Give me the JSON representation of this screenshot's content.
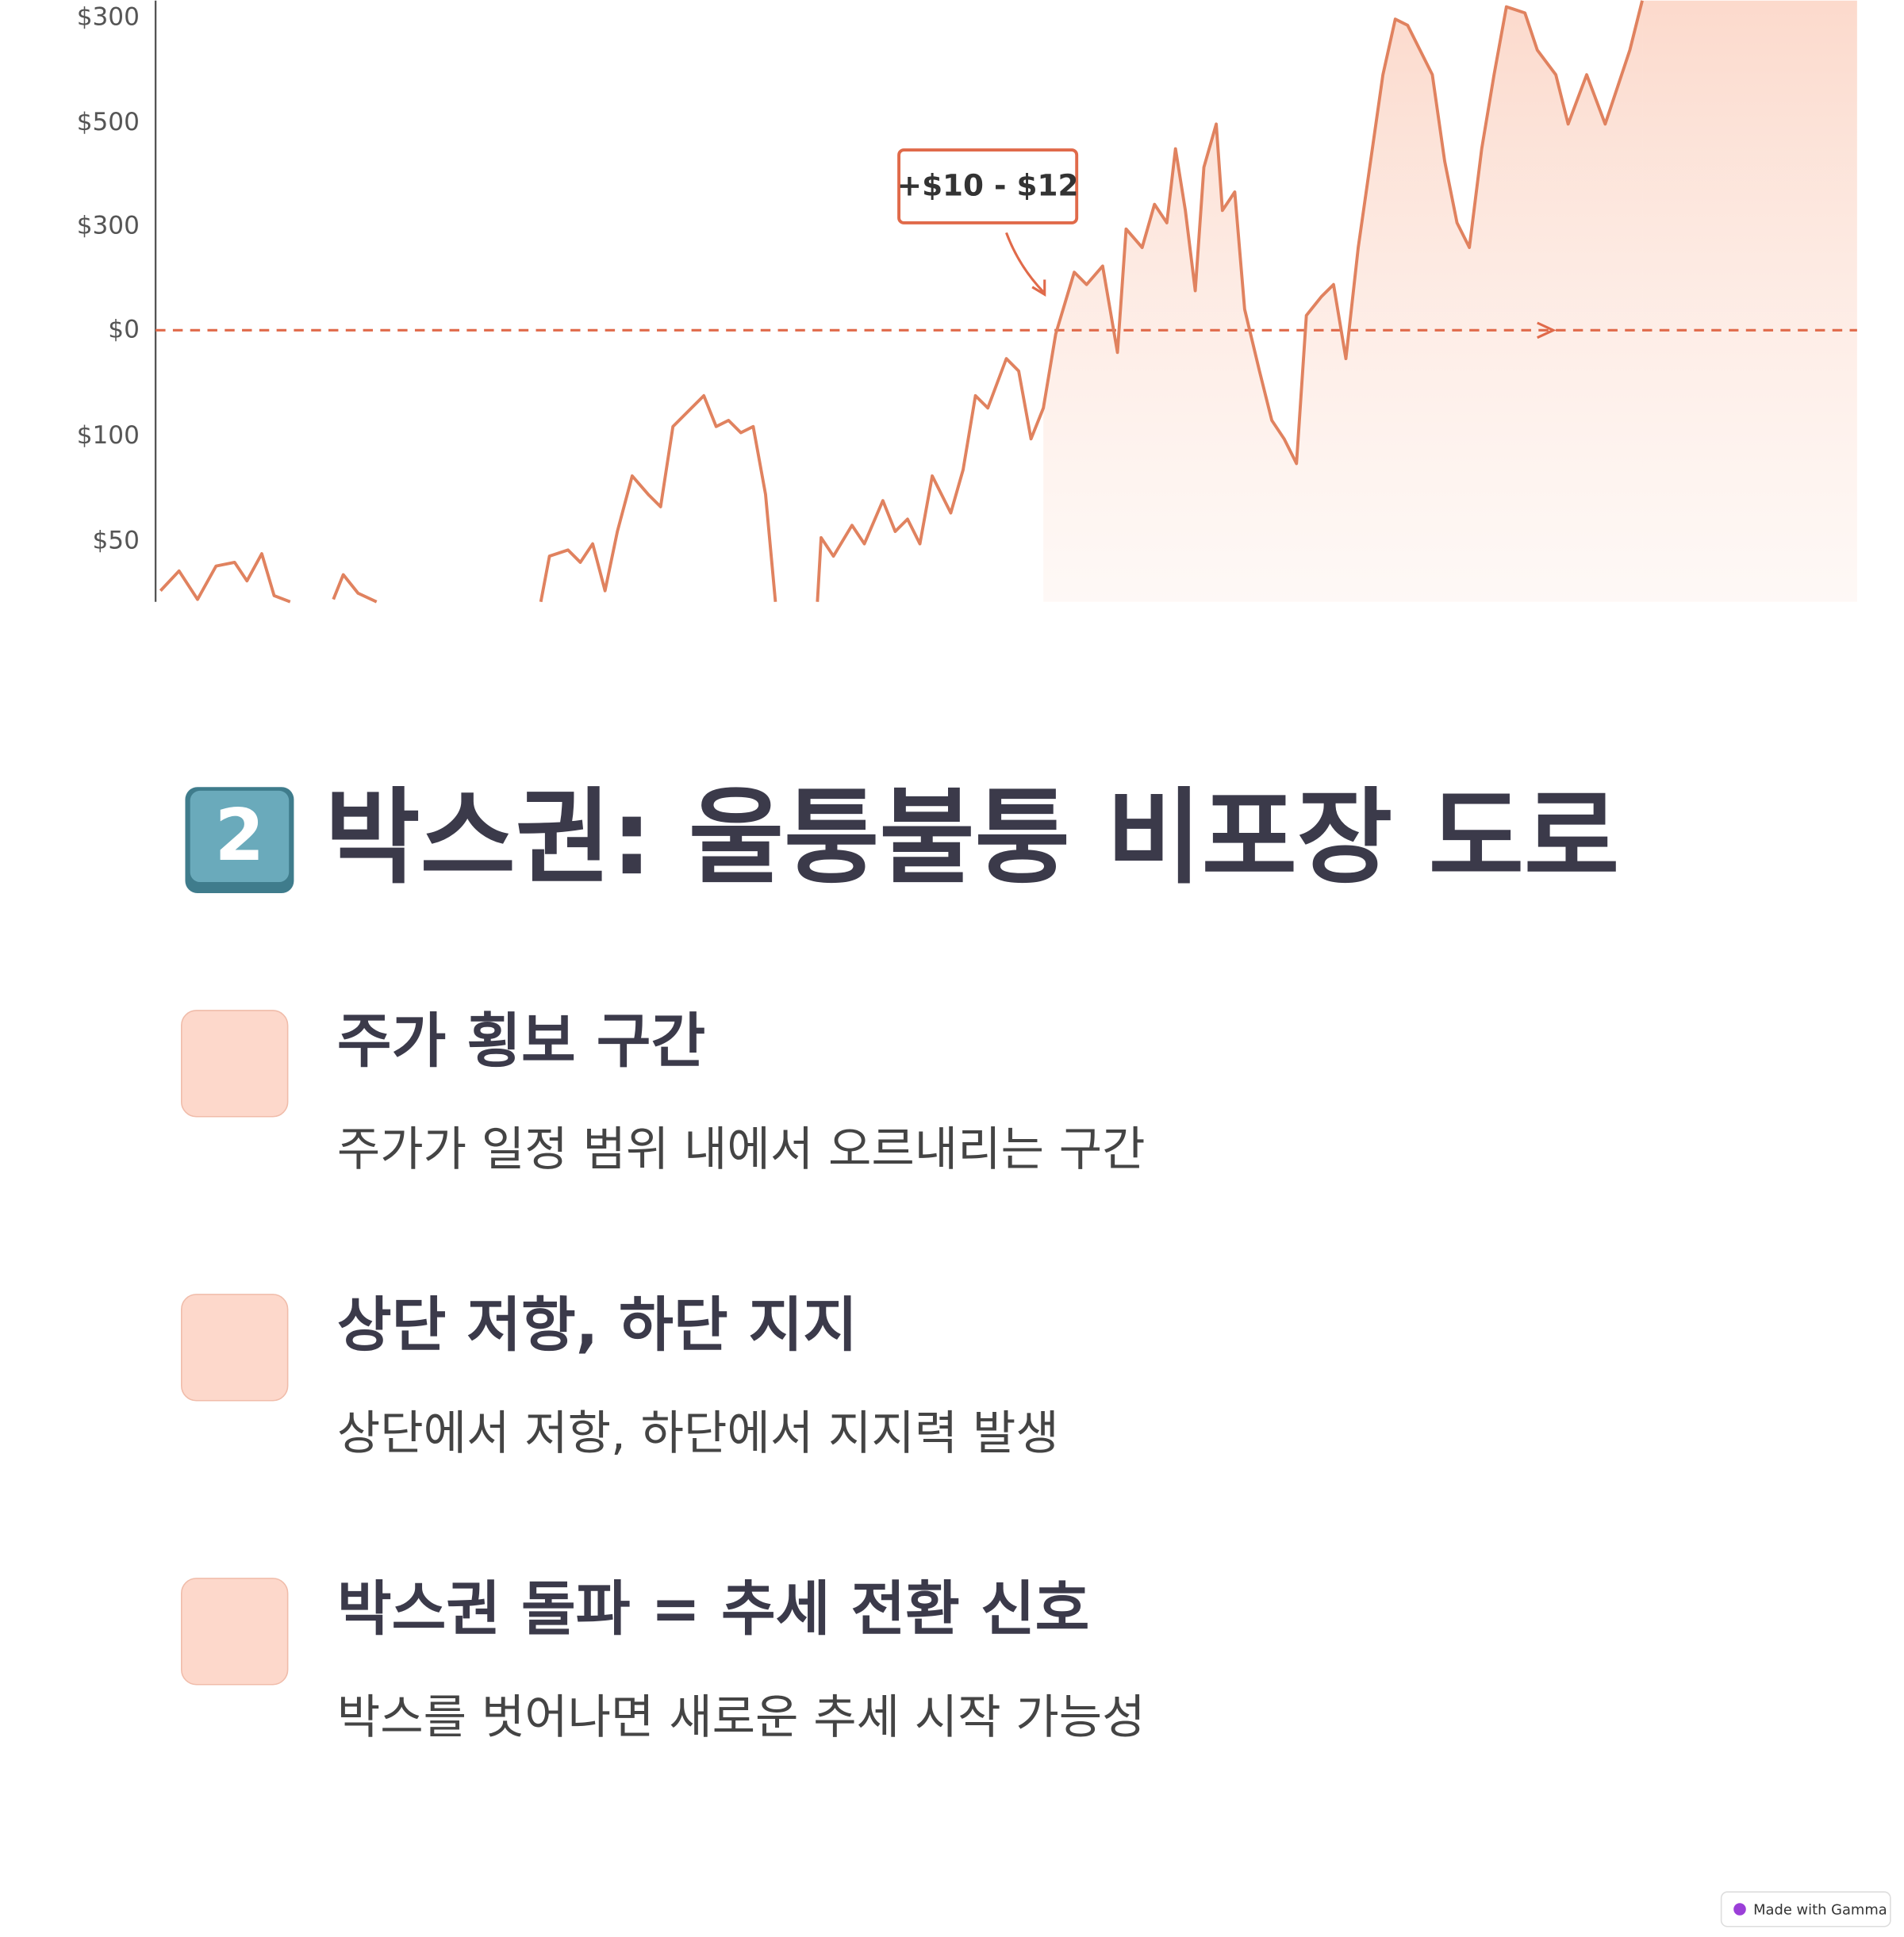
{
  "chart_image": {
    "y_labels": [
      "$300",
      "$500",
      "$300",
      "$0",
      "$100",
      "$50"
    ],
    "annotation": "+$10 - $12"
  },
  "section": {
    "badge": "2",
    "title": "박스권: 울퉁불퉁 비포장 도로",
    "items": [
      {
        "heading": "주가 횡보 구간",
        "text": "주가가 일정 범위 내에서 오르내리는 구간"
      },
      {
        "heading": "상단 저항, 하단 지지",
        "text": "상단에서 저항, 하단에서 지지력 발생"
      },
      {
        "heading": "박스권 돌파 = 추세 전환 신호",
        "text": "박스를 벗어나면 새로운 추세 시작 가능성"
      }
    ]
  },
  "footer": {
    "badge": "Made with Gamma"
  }
}
